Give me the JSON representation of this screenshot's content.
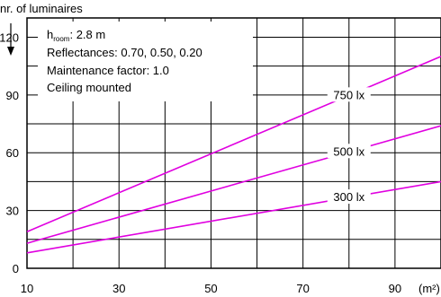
{
  "chart_data": {
    "type": "line",
    "ylabel": "nr. of luminaires",
    "xunit": "(m²)",
    "xlim": [
      10,
      100
    ],
    "ylim": [
      0,
      130
    ],
    "xticks": [
      10,
      30,
      50,
      70,
      90
    ],
    "yticks": [
      0,
      30,
      60,
      90,
      120
    ],
    "grid": true,
    "info": {
      "room_height_prefix": "h",
      "room_height_sub": "room",
      "room_height_value": ": 2.8 m",
      "reflectances": "Reflectances:  0.70, 0.50, 0.20",
      "maintenance": "Maintenance factor:  1.0",
      "mounting": "Ceiling mounted"
    },
    "series": [
      {
        "name": "750 lx",
        "x": [
          10,
          100
        ],
        "y": [
          19,
          110
        ]
      },
      {
        "name": "500 lx",
        "x": [
          10,
          100
        ],
        "y": [
          13,
          74
        ]
      },
      {
        "name": "300 lx",
        "x": [
          10,
          100
        ],
        "y": [
          8,
          45
        ]
      }
    ],
    "line_color": "#e000e0"
  }
}
